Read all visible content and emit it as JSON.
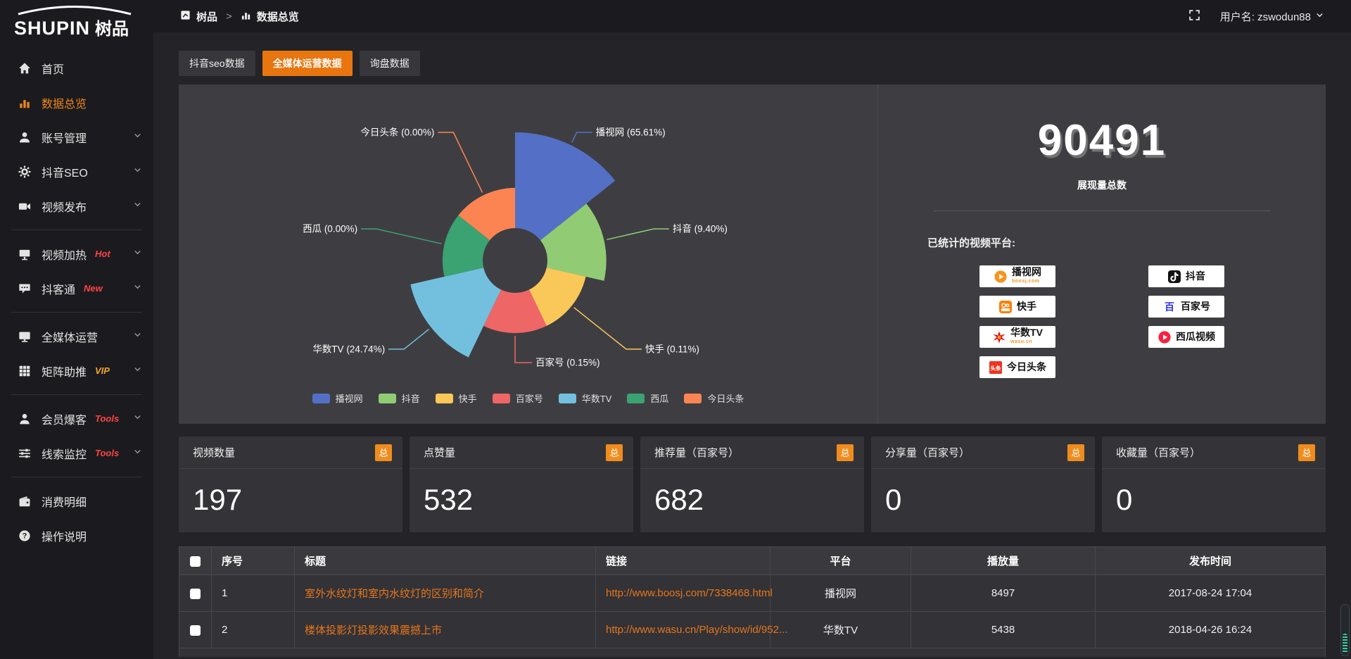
{
  "brand": {
    "logo_en": "SHUPIN",
    "logo_cn": "树品"
  },
  "topbar": {
    "breadcrumb": [
      "树品",
      "数据总览"
    ],
    "username": "用户名: zswodun88"
  },
  "sidebar": {
    "items": [
      {
        "label": "首页",
        "icon": "home-icon"
      },
      {
        "label": "数据总览",
        "icon": "bar-chart-icon",
        "active": true
      },
      {
        "label": "账号管理",
        "icon": "user-icon",
        "chevron": true
      },
      {
        "label": "抖音SEO",
        "icon": "gear-icon",
        "chevron": true
      },
      {
        "label": "视频发布",
        "icon": "video-camera-icon",
        "chevron": true
      },
      {
        "divider": true
      },
      {
        "label": "视频加热",
        "icon": "screen-icon",
        "badge": "Hot",
        "badge_color": "#ff4343",
        "chevron": true
      },
      {
        "label": "抖客通",
        "icon": "chat-icon",
        "badge": "New",
        "badge_color": "#ff4343",
        "chevron": true
      },
      {
        "divider": true
      },
      {
        "label": "全媒体运营",
        "icon": "monitor-icon",
        "chevron": true
      },
      {
        "label": "矩阵助推",
        "icon": "grid-icon",
        "badge": "VIP",
        "badge_color": "#f5a623",
        "chevron": true
      },
      {
        "divider": true
      },
      {
        "label": "会员爆客",
        "icon": "member-icon",
        "badge": "Tools",
        "badge_color": "#ff4343",
        "chevron": true
      },
      {
        "label": "线索监控",
        "icon": "sliders-icon",
        "badge": "Tools",
        "badge_color": "#ff4343",
        "chevron": true
      },
      {
        "divider": true
      },
      {
        "label": "消费明细",
        "icon": "wallet-icon"
      },
      {
        "label": "操作说明",
        "icon": "help-icon"
      }
    ]
  },
  "tabs": [
    {
      "label": "抖音seo数据",
      "active": false
    },
    {
      "label": "全媒体运营数据",
      "active": true
    },
    {
      "label": "询盘数据",
      "active": false
    }
  ],
  "chart_data": {
    "type": "pie",
    "subtype": "nightingale-rose",
    "labels": [
      "播视网",
      "抖音",
      "快手",
      "百家号",
      "华数TV",
      "西瓜",
      "今日头条"
    ],
    "values_percent": [
      65.61,
      9.4,
      0.11,
      0.15,
      24.74,
      0.0,
      0.0
    ],
    "colors": [
      "#5470c6",
      "#91cc75",
      "#fac858",
      "#ee6666",
      "#73c0de",
      "#3ba272",
      "#fc8452"
    ],
    "legend": [
      "播视网",
      "抖音",
      "快手",
      "百家号",
      "华数TV",
      "西瓜",
      "今日头条"
    ],
    "legend_position": "bottom",
    "label_format": "{name} ({percent}%)"
  },
  "overview": {
    "total_value": "90491",
    "total_label": "展现量总数",
    "platforms_title": "已统计的视频平台:",
    "platforms_left": [
      {
        "name": "播视网",
        "caption": "boosj.com",
        "logo": "boosj-logo"
      },
      {
        "name": "快手",
        "logo": "kuaishou-logo"
      },
      {
        "name": "华数TV",
        "caption": "wasu.cn",
        "logo": "wasu-logo"
      },
      {
        "name": "今日头条",
        "logo": "toutiao-logo"
      }
    ],
    "platforms_right": [
      {
        "name": "抖音",
        "logo": "douyin-logo"
      },
      {
        "name": "百家号",
        "logo": "baijiahao-logo"
      },
      {
        "name": "西瓜视频",
        "logo": "xigua-logo"
      }
    ]
  },
  "stat_cards": [
    {
      "label": "视频数量",
      "badge": "总",
      "value": "197"
    },
    {
      "label": "点赞量",
      "badge": "总",
      "value": "532"
    },
    {
      "label": "推荐量（百家号）",
      "badge": "总",
      "value": "682"
    },
    {
      "label": "分享量（百家号）",
      "badge": "总",
      "value": "0"
    },
    {
      "label": "收藏量（百家号）",
      "badge": "总",
      "value": "0"
    }
  ],
  "table": {
    "columns": [
      "",
      "序号",
      "标题",
      "链接",
      "平台",
      "播放量",
      "发布时间"
    ],
    "rows": [
      {
        "index": "1",
        "title": "室外水纹灯和室内水纹灯的区别和简介",
        "link": "http://www.boosj.com/7338468.html",
        "platform": "播视网",
        "plays": "8497",
        "time": "2017-08-24 17:04"
      },
      {
        "index": "2",
        "title": "楼体投影灯投影效果震撼上市",
        "link": "http://www.wasu.cn/Play/show/id/952...",
        "platform": "华数TV",
        "plays": "5438",
        "time": "2018-04-26 16:24"
      }
    ]
  },
  "colors": {
    "accent_orange": "#e8750e",
    "badge_orange": "#f08c1e",
    "link_orange": "#e8761a",
    "hot_red": "#ff4343",
    "vip_orange": "#f5a623"
  }
}
